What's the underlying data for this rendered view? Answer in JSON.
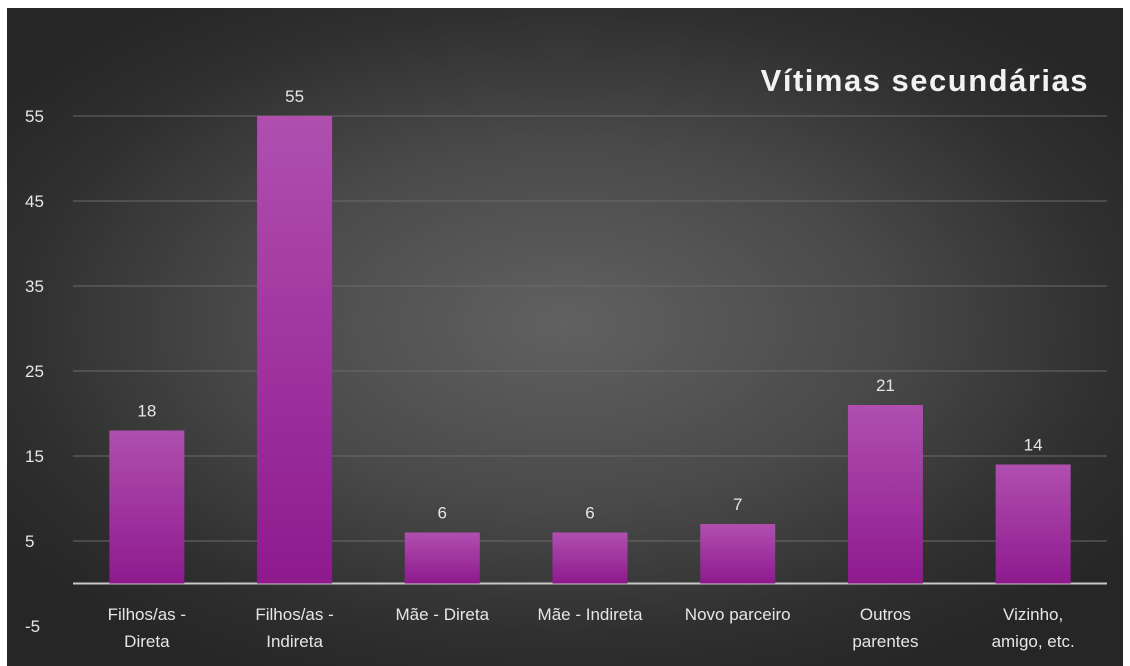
{
  "chart_data": {
    "type": "bar",
    "title": "Vítimas secundárias",
    "categories": [
      [
        "Filhos/as -",
        "Direta"
      ],
      [
        "Filhos/as -",
        "Indireta"
      ],
      [
        "Mãe - Direta"
      ],
      [
        "Mãe - Indireta"
      ],
      [
        "Novo parceiro"
      ],
      [
        "Outros",
        "parentes"
      ],
      [
        "Vizinho,",
        "amigo, etc."
      ]
    ],
    "values": [
      18,
      55,
      6,
      6,
      7,
      21,
      14
    ],
    "data_labels": [
      "18",
      "55",
      "6",
      "6",
      "7",
      "21",
      "14"
    ],
    "yticks": [
      -5,
      5,
      15,
      25,
      35,
      45,
      55
    ],
    "ytick_labels": [
      "-5",
      "5",
      "15",
      "25",
      "35",
      "45",
      "55"
    ],
    "ylim": [
      -5,
      55
    ],
    "grid": true,
    "legend": "none",
    "colors": {
      "bar_top": "#b04fb0",
      "bar_bottom": "#8e1a8e",
      "background": "#4a4a4a"
    }
  }
}
